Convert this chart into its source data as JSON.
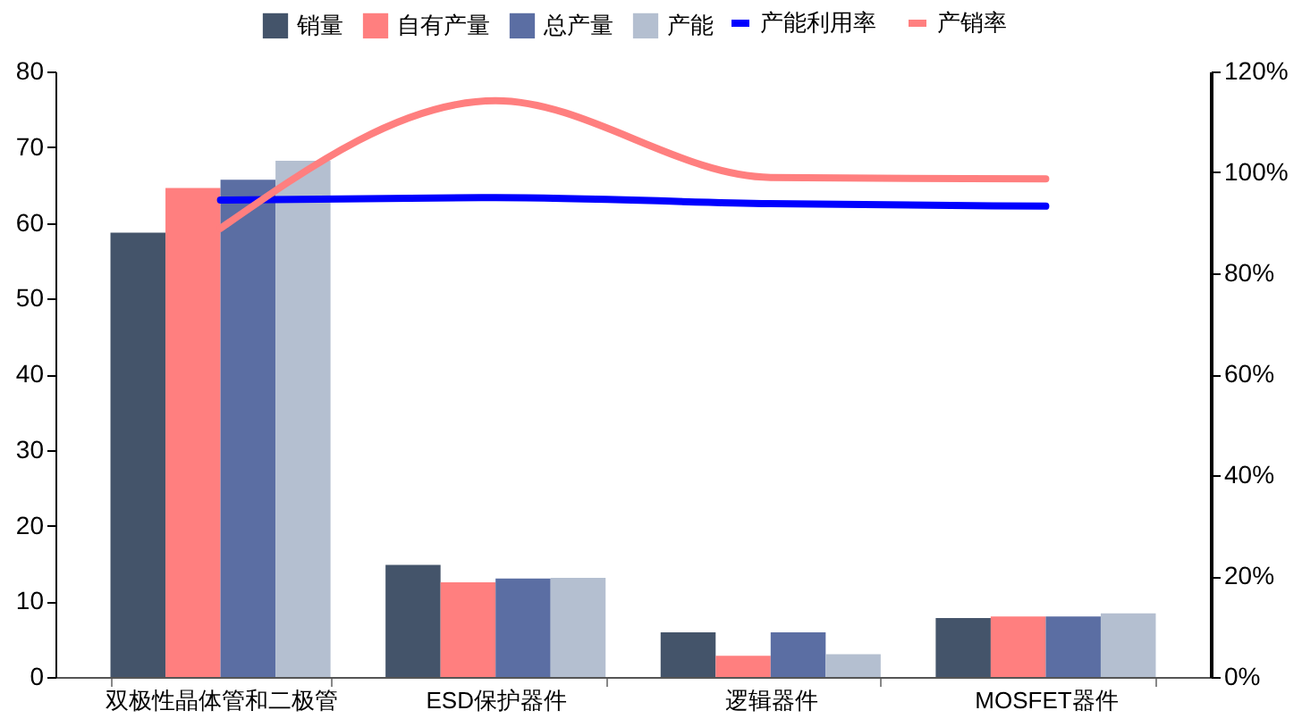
{
  "chart_data": {
    "type": "bar",
    "categories": [
      "双极性晶体管和二极管",
      "ESD保护器件",
      "逻辑器件",
      "MOSFET器件"
    ],
    "series": [
      {
        "name": "销量",
        "color": "#44546a",
        "values": [
          58.7,
          14.8,
          5.9,
          7.8
        ]
      },
      {
        "name": "自有产量",
        "color": "#ff7f7f",
        "values": [
          64.6,
          12.5,
          2.8,
          8.0
        ]
      },
      {
        "name": "总产量",
        "color": "#5b6ea3",
        "values": [
          65.7,
          13.0,
          5.9,
          8.0
        ]
      },
      {
        "name": "产能",
        "color": "#b4bfd0",
        "values": [
          68.2,
          13.1,
          3.0,
          8.4
        ]
      },
      {
        "name": "产能利用率",
        "color": "#0000ff",
        "type": "line",
        "axis": "y2",
        "values": [
          94.5,
          95.0,
          93.8,
          93.3
        ]
      },
      {
        "name": "产销率",
        "color": "#ff7f7f",
        "type": "line",
        "axis": "y2",
        "values": [
          88.9,
          114.2,
          99.0,
          98.7
        ]
      }
    ],
    "ylim": [
      0,
      80
    ],
    "yticks": [
      0,
      10,
      20,
      30,
      40,
      50,
      60,
      70,
      80
    ],
    "y2lim": [
      0,
      120
    ],
    "y2ticks": [
      {
        "value": 0,
        "label": "0%"
      },
      {
        "value": 20,
        "label": "20%"
      },
      {
        "value": 40,
        "label": "40%"
      },
      {
        "value": 60,
        "label": "60%"
      },
      {
        "value": 80,
        "label": "80%"
      },
      {
        "value": 100,
        "label": "100%"
      },
      {
        "value": 120,
        "label": "120%"
      }
    ],
    "legend": "top",
    "grid": false
  }
}
